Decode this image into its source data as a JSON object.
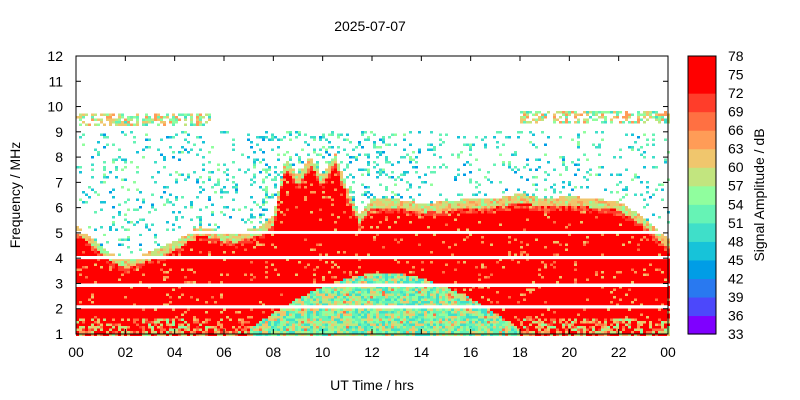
{
  "chart_data": {
    "type": "heatmap",
    "title": "2025-07-07",
    "xlabel": "UT Time / hrs",
    "ylabel": "Frequency / MHz",
    "colorbar_label": "Signal Amplitude / dB",
    "xlim": [
      0,
      24
    ],
    "ylim": [
      1,
      12
    ],
    "x_ticks": [
      "00",
      "02",
      "04",
      "06",
      "08",
      "10",
      "12",
      "14",
      "16",
      "18",
      "20",
      "22",
      "00"
    ],
    "y_ticks": [
      "1",
      "2",
      "3",
      "4",
      "5",
      "6",
      "7",
      "8",
      "9",
      "10",
      "11",
      "12"
    ],
    "colorbar_range": [
      33,
      78
    ],
    "colorbar_ticks": [
      "78",
      "75",
      "72",
      "69",
      "66",
      "63",
      "60",
      "57",
      "54",
      "51",
      "48",
      "45",
      "42",
      "39",
      "36",
      "33"
    ],
    "colormap": [
      "#7f00ff",
      "#4c48fb",
      "#2979f0",
      "#009de6",
      "#17c3d9",
      "#3fdfc9",
      "#66f3b5",
      "#90fe9e",
      "#c2e57f",
      "#f0c66d",
      "#ff9c57",
      "#ff7042",
      "#ff3d2a",
      "#ff0000",
      "#ff0000"
    ],
    "foF2_envelope_mhz": {
      "x": [
        0,
        1,
        1.5,
        2,
        3,
        4,
        5,
        6,
        6.5,
        7,
        7.5,
        8,
        8.5,
        9,
        9.5,
        10,
        10.5,
        11,
        11.5,
        12,
        13,
        14,
        15,
        16,
        17,
        18,
        19,
        20,
        21,
        22,
        23,
        24
      ],
      "y": [
        5.0,
        4.2,
        3.8,
        3.6,
        3.9,
        4.3,
        4.9,
        4.7,
        4.6,
        4.8,
        4.9,
        5.3,
        7.6,
        6.9,
        7.7,
        6.9,
        7.8,
        6.4,
        5.4,
        6.0,
        6.0,
        5.8,
        5.9,
        6.0,
        6.0,
        6.2,
        6.0,
        6.1,
        6.0,
        5.9,
        5.3,
        4.4
      ]
    },
    "es_layer_mhz": {
      "x": [
        0,
        5.5,
        18,
        24
      ],
      "y": [
        9.5,
        9.5,
        9.6,
        9.6
      ]
    },
    "blank_frequencies_mhz": [
      4.0,
      2.9,
      2.1,
      5.0
    ]
  }
}
